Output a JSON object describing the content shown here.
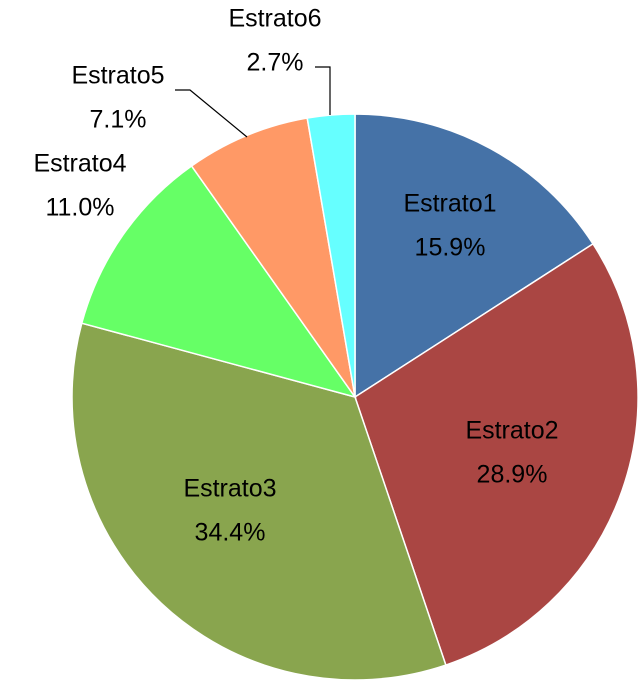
{
  "chart_data": {
    "type": "pie",
    "categories": [
      "Estrato1",
      "Estrato2",
      "Estrato3",
      "Estrato4",
      "Estrato5",
      "Estrato6"
    ],
    "values": [
      15.9,
      28.9,
      34.4,
      11.0,
      7.1,
      2.7
    ],
    "value_labels": [
      "15.9%",
      "28.9%",
      "34.4%",
      "11.0%",
      "7.1%",
      "2.7%"
    ],
    "colors": [
      "#4572a7",
      "#aa4643",
      "#89a54e",
      "#66ff66",
      "#ff9966",
      "#66ffff"
    ]
  }
}
